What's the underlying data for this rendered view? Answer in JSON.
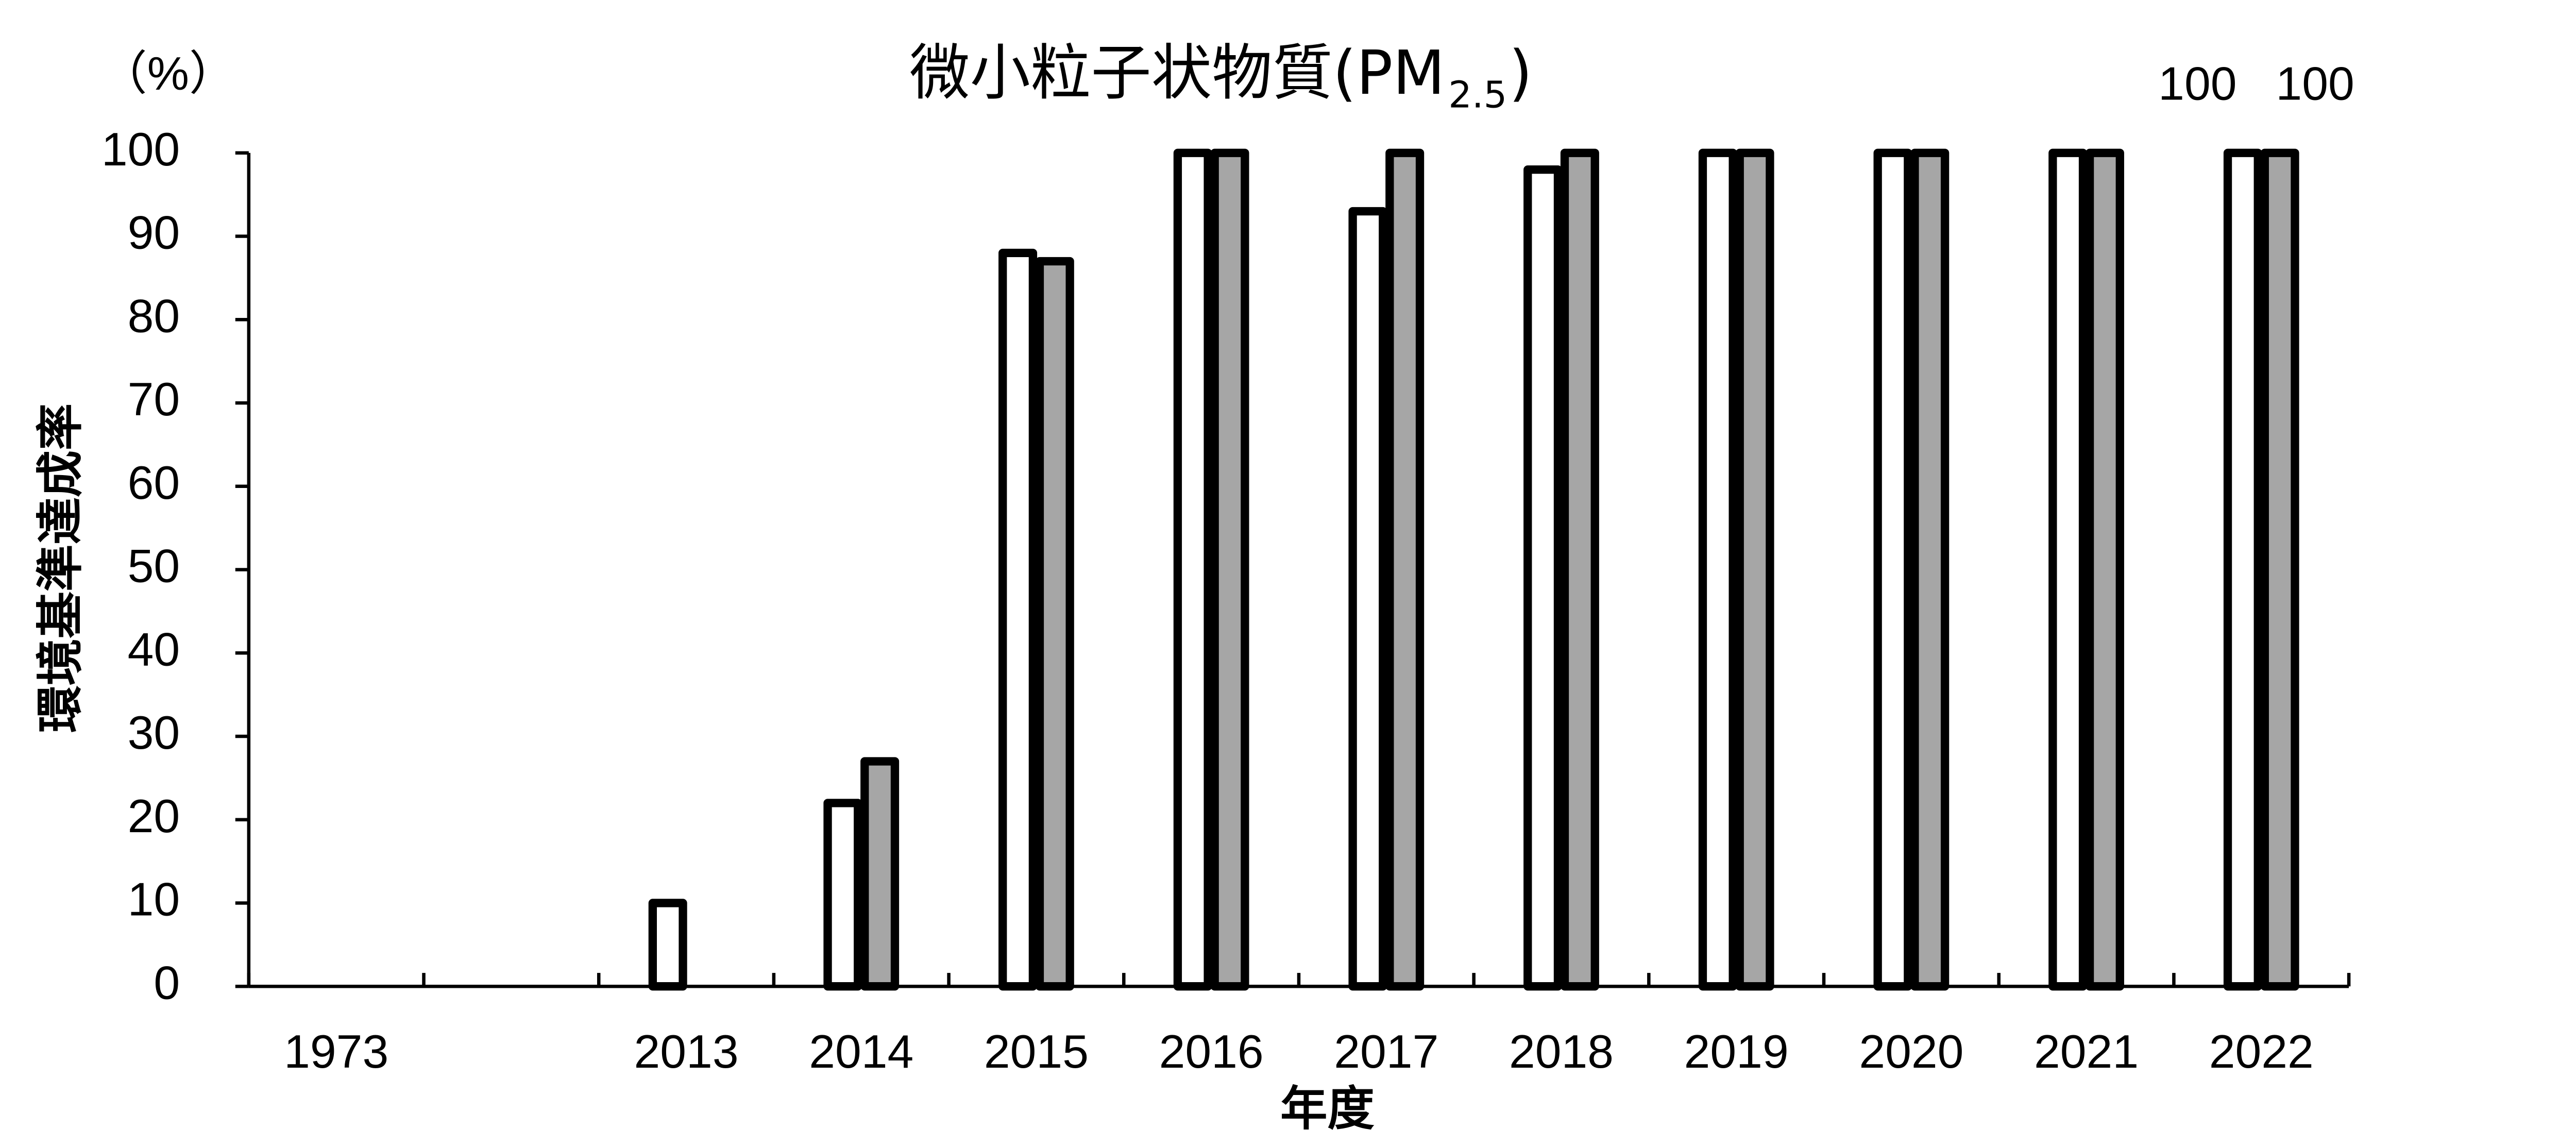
{
  "chart_data": {
    "type": "bar",
    "title": {
      "text": "微小粒子状物質(PM",
      "subscript": "2.5",
      "close": ")"
    },
    "y_unit": "（%）",
    "y_label": "環境基準達成率",
    "x_label": "年度",
    "categories": [
      "1973",
      null,
      "2013",
      "2014",
      "2015",
      "2016",
      "2017",
      "2018",
      "2019",
      "2020",
      "2021",
      "2022"
    ],
    "series": [
      {
        "color": "#ffffff",
        "values": [
          null,
          null,
          10,
          22,
          88,
          100,
          93,
          98,
          100,
          100,
          100,
          100
        ],
        "value_labels": [
          null,
          null,
          null,
          null,
          null,
          null,
          null,
          null,
          null,
          null,
          null,
          "100"
        ]
      },
      {
        "color": "#a6a6a6",
        "values": [
          null,
          null,
          null,
          27,
          87,
          100,
          100,
          100,
          100,
          100,
          100,
          100
        ],
        "value_labels": [
          null,
          null,
          null,
          null,
          null,
          null,
          null,
          null,
          null,
          null,
          null,
          "100"
        ]
      }
    ],
    "ylim": [
      0,
      100
    ],
    "yticks": [
      0,
      10,
      20,
      30,
      40,
      50,
      60,
      70,
      80,
      90,
      100
    ],
    "grid": false
  }
}
